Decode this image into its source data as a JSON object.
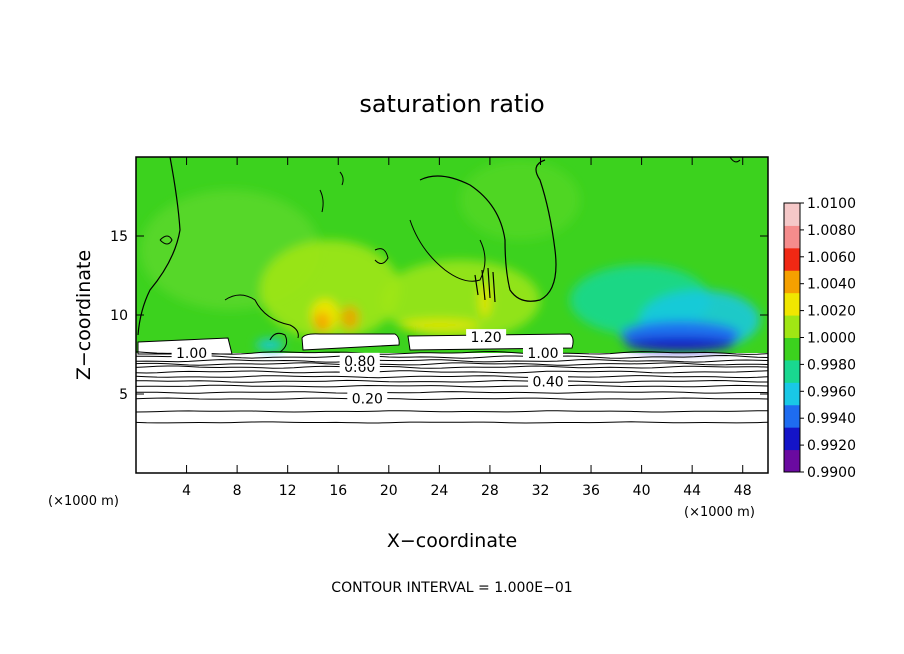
{
  "chart_data": {
    "type": "heatmap",
    "title": "saturation ratio",
    "xlabel": "X−coordinate",
    "ylabel": "Z−coordinate",
    "x_unit": "(×1000 m)",
    "y_unit": "(×1000 m)",
    "xlim": [
      0,
      50
    ],
    "ylim": [
      0,
      20
    ],
    "x_ticks": [
      4,
      8,
      12,
      16,
      20,
      24,
      28,
      32,
      36,
      40,
      44,
      48
    ],
    "y_ticks": [
      5,
      10,
      15
    ],
    "colorbar": {
      "min": 0.99,
      "max": 1.01,
      "levels": [
        "0.9900",
        "0.9920",
        "0.9940",
        "0.9960",
        "0.9980",
        "1.0000",
        "1.0020",
        "1.0040",
        "1.0060",
        "1.0080",
        "1.0100"
      ],
      "colors": [
        "#6a0aa0",
        "#1414c8",
        "#1e6cf0",
        "#19c8e6",
        "#19d890",
        "#3cd21e",
        "#a0e614",
        "#f0e600",
        "#f5a000",
        "#f02814",
        "#f58c8c",
        "#f5c8c8"
      ]
    },
    "contour_levels": [
      {
        "value": 0.2,
        "label": "0.20",
        "z": 4.7
      },
      {
        "value": 0.4,
        "label": "0.40",
        "z": 5.8
      },
      {
        "value": 0.6,
        "label": "0.60",
        "z": 6.7
      },
      {
        "value": 0.8,
        "label": "0.80",
        "z": 7.1
      },
      {
        "value": 1.0,
        "label": "1.00",
        "z": 7.6
      },
      {
        "value": 1.2,
        "label": "1.20",
        "z": 8.6
      }
    ],
    "contour_interval": "CONTOUR INTERVAL = 1.000E−01"
  }
}
